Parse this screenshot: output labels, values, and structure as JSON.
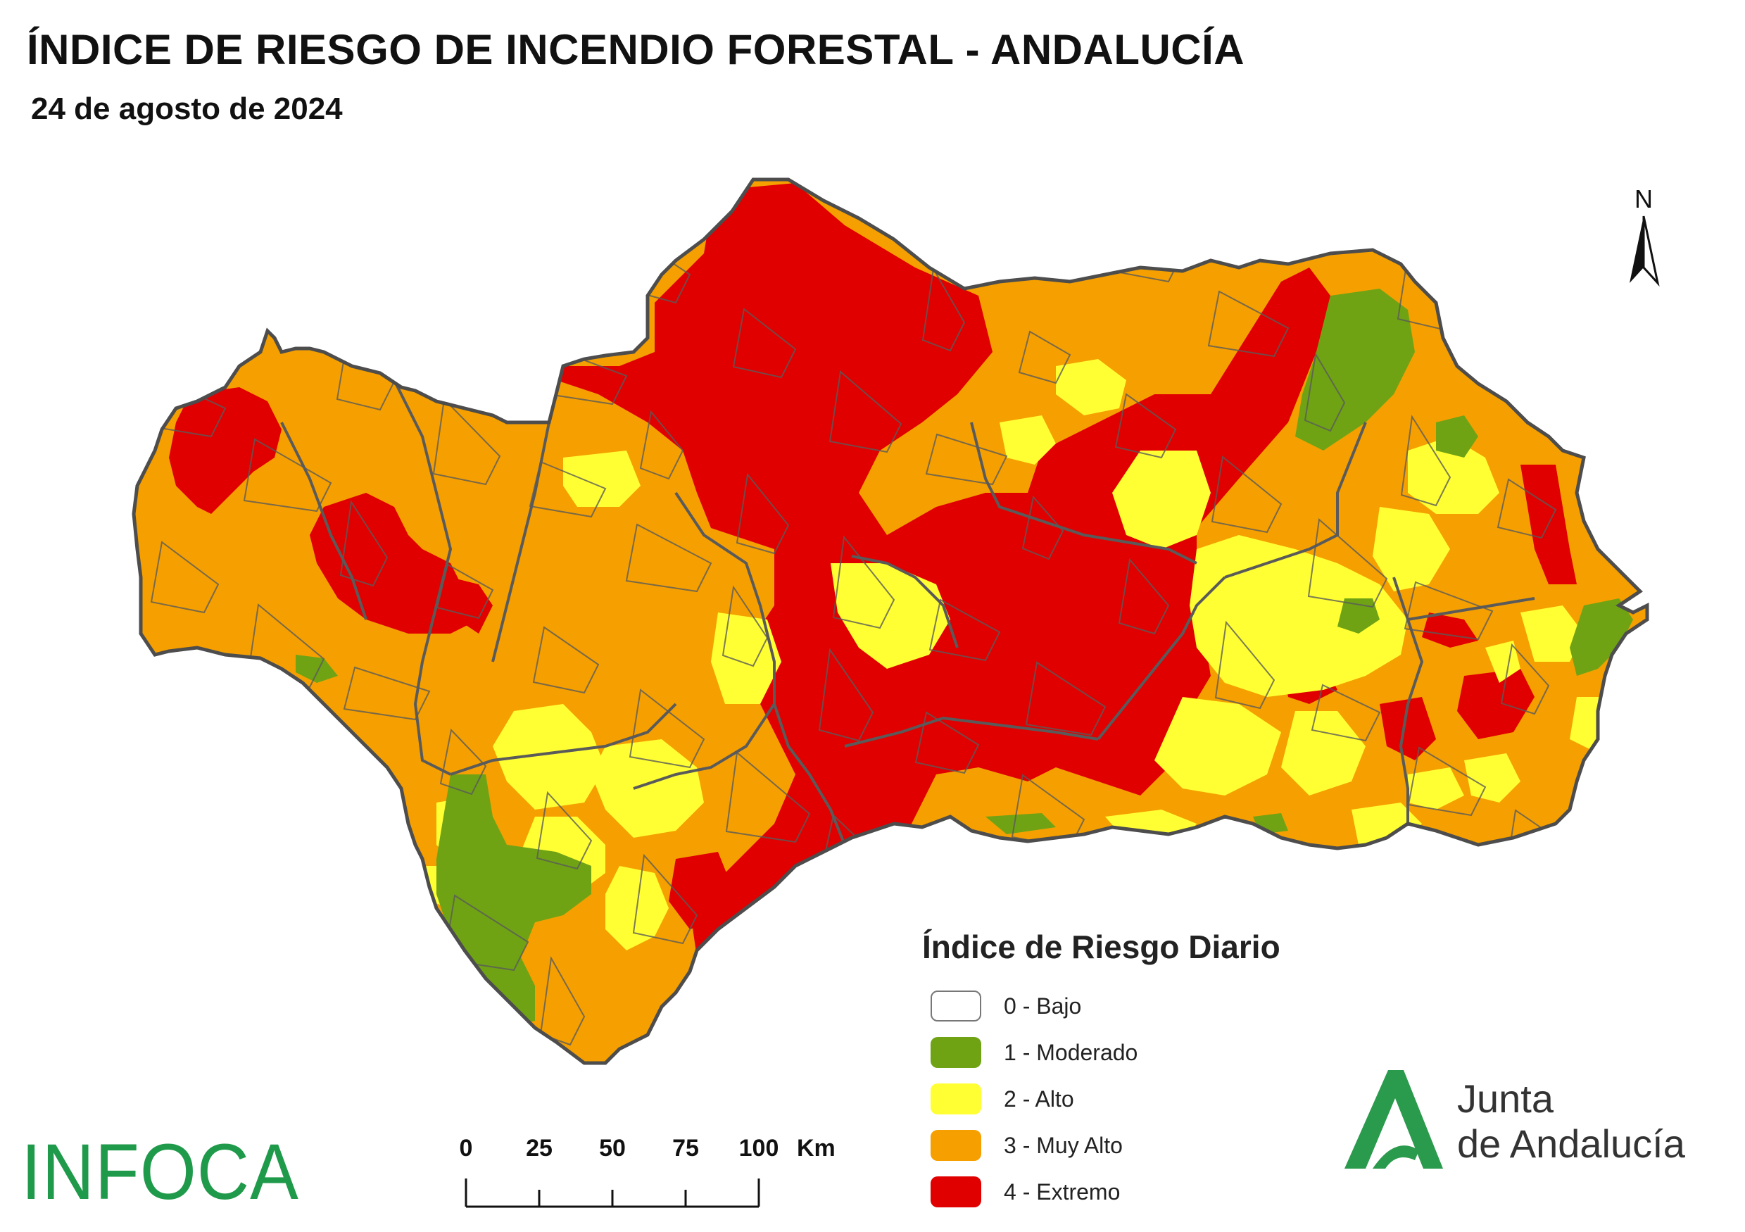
{
  "title": "ÍNDICE DE RIESGO DE INCENDIO FORESTAL - ANDALUCÍA",
  "date": "24 de agosto de 2024",
  "north_label": "N",
  "legend": {
    "title": "Índice de Riesgo Diario",
    "items": [
      {
        "label": "0 - Bajo",
        "color": "#ffffff"
      },
      {
        "label": "1 - Moderado",
        "color": "#6fa314"
      },
      {
        "label": "2 - Alto",
        "color": "#ffff33"
      },
      {
        "label": "3 - Muy Alto",
        "color": "#f5a000"
      },
      {
        "label": "4 - Extremo",
        "color": "#e00000"
      }
    ]
  },
  "scale_bar": {
    "ticks": [
      "0",
      "25",
      "50",
      "75",
      "100"
    ],
    "unit": "Km"
  },
  "logos": {
    "infoca": "INFOCA",
    "junta_line1": "Junta",
    "junta_line2": "de Andalucía"
  },
  "colors": {
    "bajo": "#ffffff",
    "moderado": "#6fa314",
    "alto": "#ffff33",
    "muy_alto": "#f5a000",
    "extremo": "#e00000",
    "borders": "#5a5a5a",
    "junta_green": "#2a9a4c"
  }
}
